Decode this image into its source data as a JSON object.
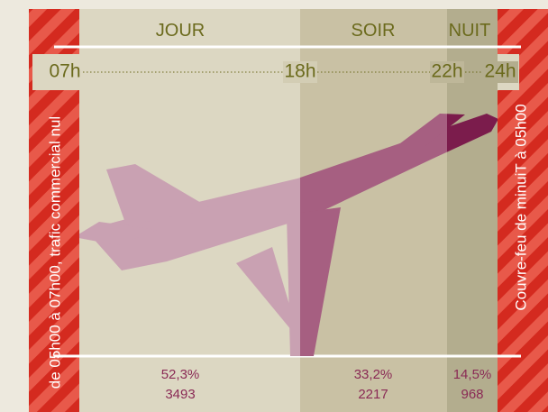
{
  "periods": [
    {
      "name": "JOUR",
      "share": "52,3%",
      "flights": "3493"
    },
    {
      "name": "SOIR",
      "share": "33,2%",
      "flights": "2217"
    },
    {
      "name": "NUIT",
      "share": "14,5%",
      "flights": "968"
    }
  ],
  "hours": [
    "07h",
    "18h",
    "22h",
    "24h"
  ],
  "left_note": "de 05h00 à 07h00, trafic commercial nul",
  "right_note": "Couvre-feu de minuiT à 05h00"
}
